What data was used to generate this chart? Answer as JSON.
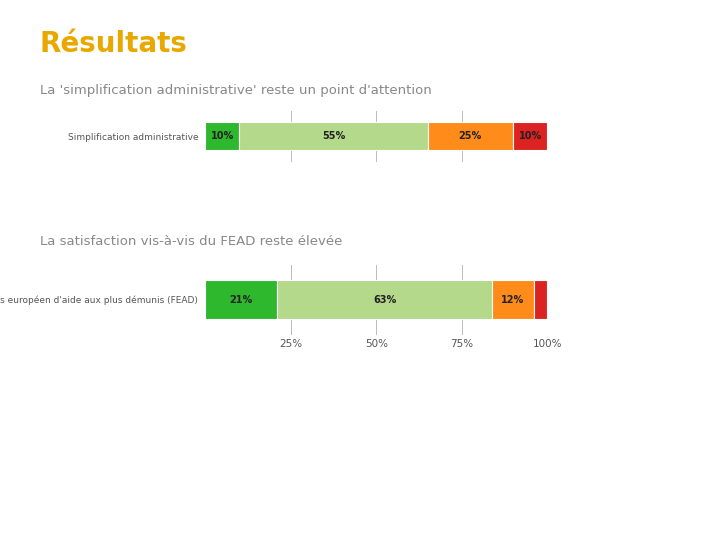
{
  "title": "Résultats",
  "title_color": "#E8A800",
  "subtitle1": "La 'simplification administrative' reste un point d'attention",
  "subtitle2": "La satisfaction vis-à-vis du FEAD reste élevée",
  "subtitle_color": "#888888",
  "background_color": "#ffffff",
  "bar1": {
    "label": "Simplification administrative",
    "segments": [
      {
        "value": 10,
        "color": "#2db82d",
        "text": "10%"
      },
      {
        "value": 55,
        "color": "#b5d98a",
        "text": "55%"
      },
      {
        "value": 25,
        "color": "#ff8c1a",
        "text": "25%"
      },
      {
        "value": 10,
        "color": "#dd2222",
        "text": "10%"
      }
    ]
  },
  "bar2": {
    "label": "Le Fonds européen d'aide aux plus démunis (FEAD)",
    "segments": [
      {
        "value": 21,
        "color": "#2db82d",
        "text": "21%"
      },
      {
        "value": 63,
        "color": "#b5d98a",
        "text": "63%"
      },
      {
        "value": 12,
        "color": "#ff8c1a",
        "text": "12%"
      },
      {
        "value": 4,
        "color": "#dd2222",
        "text": ""
      }
    ]
  },
  "xtick_labels": [
    "25%",
    "50%",
    "75%",
    "100%"
  ],
  "xtick_values": [
    25,
    50,
    75,
    100
  ],
  "bar_height": 0.55,
  "label_fontsize": 6.5,
  "seg_fontsize": 7.0
}
